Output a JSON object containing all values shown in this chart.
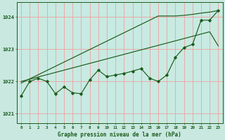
{
  "title": "Graphe pression niveau de la mer (hPa)",
  "background_color": "#c8e8e0",
  "plot_bg_color": "#c8eae2",
  "grid_color": "#f0a0a0",
  "line_color": "#1a5c1a",
  "xlim": [
    -0.5,
    23.5
  ],
  "ylim": [
    1020.7,
    1024.45
  ],
  "yticks": [
    1021,
    1022,
    1023,
    1024
  ],
  "xticks": [
    0,
    1,
    2,
    3,
    4,
    5,
    6,
    7,
    8,
    9,
    10,
    11,
    12,
    13,
    14,
    15,
    16,
    17,
    18,
    19,
    20,
    21,
    22,
    23
  ],
  "x": [
    0,
    1,
    2,
    3,
    4,
    5,
    6,
    7,
    8,
    9,
    10,
    11,
    12,
    13,
    14,
    15,
    16,
    17,
    18,
    19,
    20,
    21,
    22,
    23
  ],
  "y_main": [
    1021.55,
    1022.0,
    1022.1,
    1022.0,
    1021.62,
    1021.83,
    1021.65,
    1021.62,
    1022.05,
    1022.35,
    1022.15,
    1022.2,
    1022.25,
    1022.32,
    1022.4,
    1022.1,
    1022.0,
    1022.2,
    1022.75,
    1023.05,
    1023.15,
    1023.9,
    1023.9,
    1024.2
  ],
  "y_line1": [
    1022.0,
    1022.07,
    1022.14,
    1022.21,
    1022.28,
    1022.35,
    1022.42,
    1022.49,
    1022.56,
    1022.63,
    1022.7,
    1022.77,
    1022.84,
    1022.91,
    1022.98,
    1023.05,
    1023.12,
    1023.19,
    1023.26,
    1023.33,
    1023.4,
    1023.47,
    1023.54,
    1023.1
  ],
  "y_line2": [
    1021.95,
    1022.08,
    1022.21,
    1022.34,
    1022.47,
    1022.6,
    1022.73,
    1022.86,
    1022.99,
    1023.12,
    1023.25,
    1023.38,
    1023.51,
    1023.64,
    1023.77,
    1023.9,
    1024.03,
    1024.03,
    1024.03,
    1024.05,
    1024.08,
    1024.12,
    1024.15,
    1024.2
  ]
}
